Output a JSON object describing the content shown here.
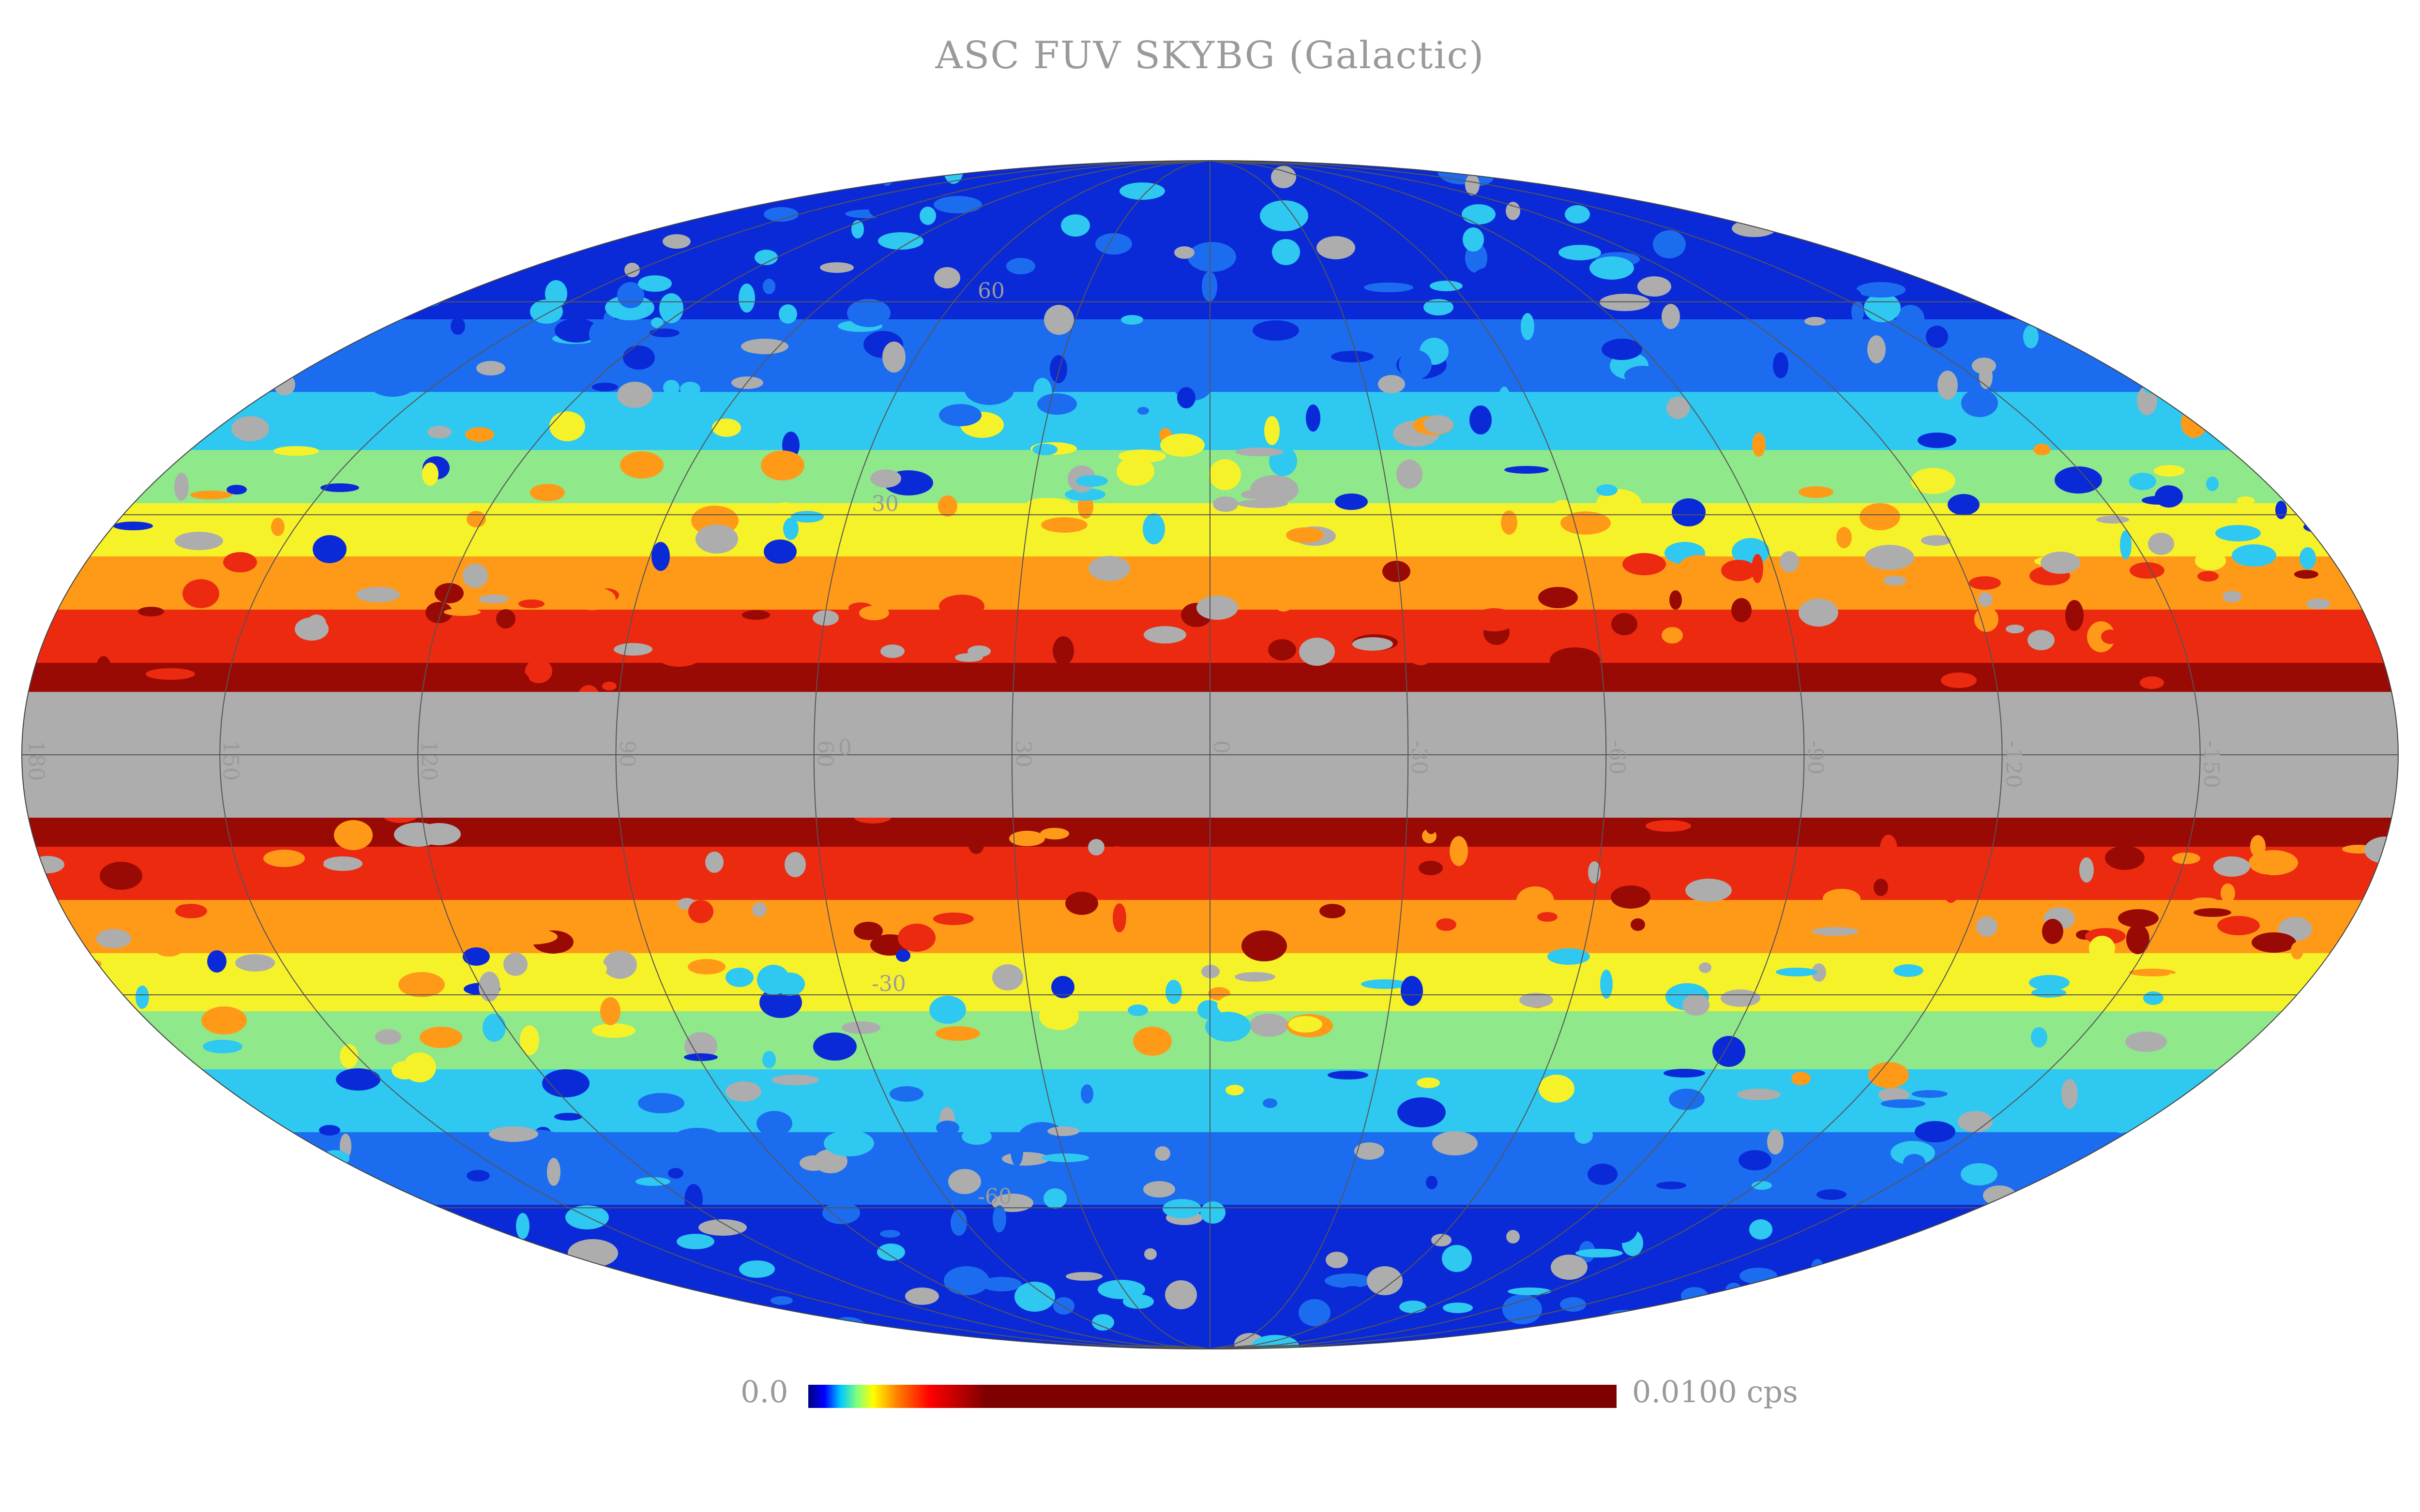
{
  "title": "ASC FUV SKYBG (Galactic)",
  "projection": "mollweide",
  "coordinate_system": "Galactic",
  "grid": true,
  "longitude_labels": [
    "180",
    "150",
    "120",
    "90",
    "60",
    "30",
    "0",
    "-30",
    "-60",
    "-90",
    "-120",
    "-150"
  ],
  "latitude_labels": [
    "60",
    "30",
    "0",
    "-30",
    "-60"
  ],
  "colorbar": {
    "min_label": "0.0",
    "max_label": "0.0100 cps",
    "min": 0.0,
    "max": 0.01,
    "unit": "cps",
    "colormap": "jet-like",
    "stops": [
      "#00007f",
      "#0000ff",
      "#00c8ff",
      "#7fff7f",
      "#ffff00",
      "#ff7f00",
      "#ff0000",
      "#7f0000",
      "#7f0000",
      "#7f0000",
      "#7f0000"
    ]
  },
  "colors": {
    "no_data": "#adadad",
    "grid_line": "#555555",
    "label_text": "#9a9a9a"
  }
}
